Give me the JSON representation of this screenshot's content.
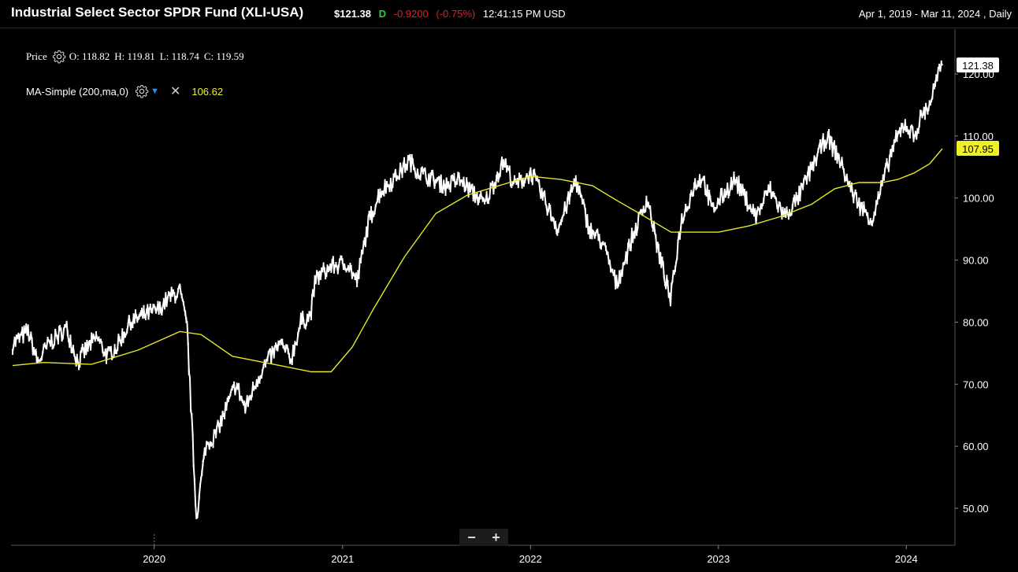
{
  "header": {
    "title": "Industrial Select Sector SPDR Fund (XLI-USA)",
    "price": "$121.38",
    "flag": "D",
    "change": "-0.9200",
    "change_pct": "(-0.75%)",
    "time": "12:41:15 PM USD",
    "range": "Apr 1, 2019 - Mar 11, 2024 , Daily"
  },
  "legend": {
    "price_label": "Price",
    "open": "O: 118.82",
    "high": "H: 119.81",
    "low": "L: 118.74",
    "close": "C: 119.59",
    "ma_label": "MA-Simple (200,ma,0)",
    "ma_value": "106.62"
  },
  "icons": {
    "settings": "gear-icon",
    "dropdown": "chevron-down-icon",
    "remove": "close-icon",
    "zoom_out": "minus-icon",
    "zoom_in": "plus-icon"
  },
  "zoom": {
    "minus": "−",
    "plus": "+"
  },
  "colors": {
    "background": "#000000",
    "price_line": "#ffffff",
    "ma_line": "#e6e62a",
    "ma_badge": "#f0f02a",
    "change_negative": "#e0202a",
    "flag_green": "#2ecc40",
    "dropdown_accent": "#1e90ff"
  },
  "chart_data": {
    "type": "line",
    "x_axis_type": "date",
    "ylim": [
      45,
      125
    ],
    "y_ticks": [
      "50.00",
      "60.00",
      "70.00",
      "80.00",
      "90.00",
      "100.00",
      "110.00",
      "120.00"
    ],
    "x_ticks": [
      {
        "date": "2020-01-01",
        "label": "2020"
      },
      {
        "date": "2021-01-01",
        "label": "2021"
      },
      {
        "date": "2022-01-01",
        "label": "2022"
      },
      {
        "date": "2023-01-01",
        "label": "2023"
      },
      {
        "date": "2024-01-01",
        "label": "2024"
      }
    ],
    "last_price_label": "121.38",
    "last_ma_label": "107.95",
    "series": [
      {
        "name": "Price",
        "x": [
          "2019-04-01",
          "2019-05-01",
          "2019-05-20",
          "2019-06-10",
          "2019-07-15",
          "2019-08-06",
          "2019-08-20",
          "2019-09-12",
          "2019-10-02",
          "2019-10-20",
          "2019-11-15",
          "2019-12-10",
          "2020-01-10",
          "2020-01-31",
          "2020-02-20",
          "2020-03-05",
          "2020-03-23",
          "2020-04-10",
          "2020-04-30",
          "2020-06-08",
          "2020-06-26",
          "2020-07-20",
          "2020-08-10",
          "2020-09-02",
          "2020-09-23",
          "2020-10-12",
          "2020-10-30",
          "2020-11-10",
          "2020-12-10",
          "2021-01-10",
          "2021-01-29",
          "2021-02-20",
          "2021-03-15",
          "2021-04-10",
          "2021-05-10",
          "2021-06-01",
          "2021-06-25",
          "2021-07-20",
          "2021-08-15",
          "2021-09-10",
          "2021-10-04",
          "2021-10-25",
          "2021-11-10",
          "2021-12-01",
          "2022-01-03",
          "2022-02-01",
          "2022-02-24",
          "2022-03-30",
          "2022-04-25",
          "2022-05-20",
          "2022-06-17",
          "2022-07-15",
          "2022-08-16",
          "2022-09-05",
          "2022-09-30",
          "2022-10-20",
          "2022-11-15",
          "2022-12-01",
          "2022-12-20",
          "2023-01-15",
          "2023-02-02",
          "2023-03-15",
          "2023-04-10",
          "2023-05-10",
          "2023-06-05",
          "2023-07-10",
          "2023-07-31",
          "2023-08-25",
          "2023-09-15",
          "2023-10-05",
          "2023-10-27",
          "2023-11-15",
          "2023-12-05",
          "2023-12-28",
          "2024-01-17",
          "2024-02-01",
          "2024-02-15",
          "2024-03-01",
          "2024-03-11"
        ],
        "values": [
          76.5,
          78.5,
          73.5,
          76.5,
          79.0,
          73.5,
          75.5,
          77.5,
          74.5,
          76.0,
          80.0,
          81.0,
          82.0,
          84.0,
          85.0,
          79.0,
          48.5,
          60.0,
          62.0,
          70.0,
          66.0,
          71.0,
          74.0,
          76.5,
          74.0,
          80.0,
          81.0,
          87.0,
          89.0,
          89.5,
          86.5,
          96.0,
          101.0,
          103.0,
          106.0,
          104.0,
          103.0,
          102.0,
          103.0,
          101.0,
          99.0,
          103.0,
          106.0,
          102.0,
          104.0,
          99.0,
          95.0,
          103.0,
          95.0,
          93.0,
          86.0,
          93.0,
          100.0,
          92.0,
          83.5,
          96.0,
          102.0,
          103.5,
          98.0,
          101.0,
          103.0,
          97.0,
          101.5,
          97.0,
          100.0,
          106.5,
          110.0,
          106.0,
          101.5,
          98.5,
          96.5,
          102.0,
          108.0,
          112.0,
          110.0,
          113.5,
          115.0,
          119.5,
          121.38
        ]
      },
      {
        "name": "MA-Simple (200,ma,0)",
        "x": [
          "2019-04-01",
          "2019-06-01",
          "2019-09-01",
          "2019-12-01",
          "2020-02-20",
          "2020-04-01",
          "2020-06-01",
          "2020-09-01",
          "2020-11-01",
          "2020-12-10",
          "2021-01-20",
          "2021-03-01",
          "2021-05-01",
          "2021-07-01",
          "2021-09-01",
          "2021-11-01",
          "2022-01-01",
          "2022-03-01",
          "2022-05-01",
          "2022-06-20",
          "2022-08-01",
          "2022-10-01",
          "2022-11-01",
          "2023-01-01",
          "2023-03-01",
          "2023-05-01",
          "2023-07-01",
          "2023-08-15",
          "2023-10-01",
          "2023-11-15",
          "2023-12-15",
          "2024-01-15",
          "2024-02-15",
          "2024-03-11"
        ],
        "values": [
          73.0,
          73.5,
          73.2,
          75.5,
          78.5,
          78.0,
          74.5,
          73.0,
          72.0,
          72.0,
          76.0,
          82.0,
          90.5,
          97.5,
          100.5,
          102.0,
          103.5,
          103.0,
          102.0,
          99.5,
          97.5,
          94.5,
          94.5,
          94.5,
          95.5,
          97.0,
          99.0,
          101.5,
          102.5,
          102.5,
          103.0,
          104.0,
          105.5,
          107.95
        ]
      }
    ]
  }
}
